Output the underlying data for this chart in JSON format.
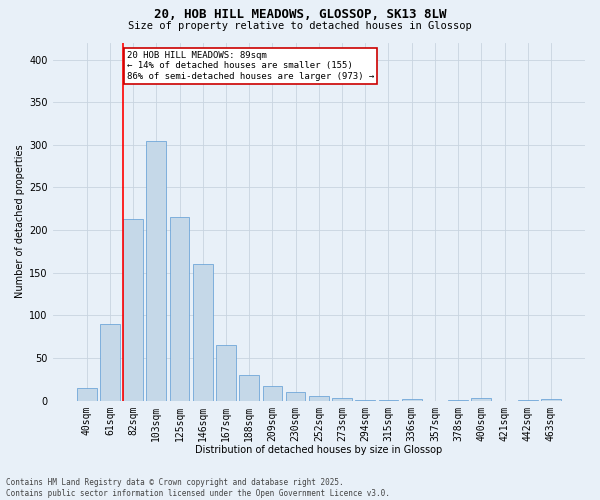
{
  "title": "20, HOB HILL MEADOWS, GLOSSOP, SK13 8LW",
  "subtitle": "Size of property relative to detached houses in Glossop",
  "xlabel": "Distribution of detached houses by size in Glossop",
  "ylabel": "Number of detached properties",
  "categories": [
    "40sqm",
    "61sqm",
    "82sqm",
    "103sqm",
    "125sqm",
    "146sqm",
    "167sqm",
    "188sqm",
    "209sqm",
    "230sqm",
    "252sqm",
    "273sqm",
    "294sqm",
    "315sqm",
    "336sqm",
    "357sqm",
    "378sqm",
    "400sqm",
    "421sqm",
    "442sqm",
    "463sqm"
  ],
  "values": [
    15,
    90,
    213,
    305,
    215,
    160,
    65,
    30,
    17,
    10,
    6,
    3,
    1,
    1,
    2,
    0,
    1,
    3,
    0,
    1,
    2
  ],
  "bar_color": "#c5d8e8",
  "bar_edge_color": "#5b9bd5",
  "grid_color": "#c8d4e0",
  "background_color": "#e8f0f8",
  "red_line_index": 2,
  "annotation_text": "20 HOB HILL MEADOWS: 89sqm\n← 14% of detached houses are smaller (155)\n86% of semi-detached houses are larger (973) →",
  "annotation_box_color": "#ffffff",
  "annotation_box_edge_color": "#cc0000",
  "footnote": "Contains HM Land Registry data © Crown copyright and database right 2025.\nContains public sector information licensed under the Open Government Licence v3.0.",
  "ylim": [
    0,
    420
  ],
  "yticks": [
    0,
    50,
    100,
    150,
    200,
    250,
    300,
    350,
    400
  ],
  "title_fontsize": 9,
  "subtitle_fontsize": 7.5,
  "axis_label_fontsize": 7,
  "tick_fontsize": 7,
  "annotation_fontsize": 6.5,
  "footnote_fontsize": 5.5
}
